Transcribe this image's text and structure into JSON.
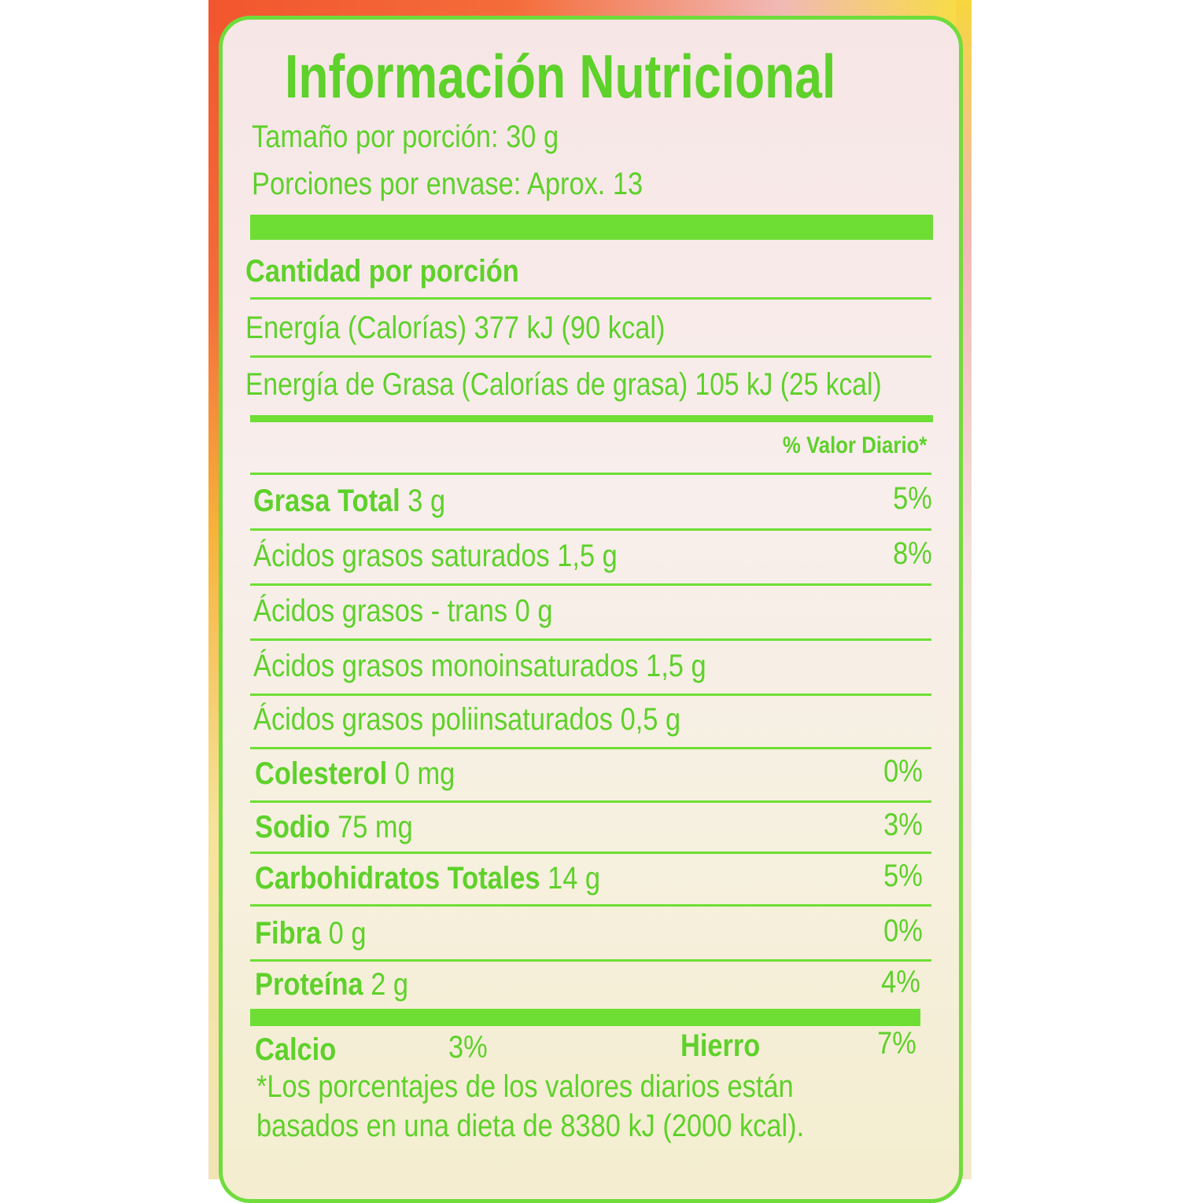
{
  "title": "Información Nutricional",
  "serving_size": "Tamaño por porción: 30 g",
  "servings_per_container": "Porciones por envase: Aprox. 13",
  "amount_per_serving": "Cantidad por porción",
  "energy": "Energía (Calorías) 377 kJ (90 kcal)",
  "fat_energy": "Energía de Grasa (Calorías de grasa) 105 kJ (25 kcal)",
  "daily_value_header": "% Valor Diario*",
  "rows": [
    {
      "label": "Grasa Total",
      "amount": "3 g",
      "pct": "5%",
      "bold": true
    },
    {
      "label": "Ácidos grasos saturados",
      "amount": "1,5 g",
      "pct": "8%",
      "bold": false
    },
    {
      "label": "Ácidos grasos - trans",
      "amount": "0 g",
      "pct": "",
      "bold": false
    },
    {
      "label": "Ácidos grasos monoinsaturados",
      "amount": "1,5 g",
      "pct": "",
      "bold": false
    },
    {
      "label": "Ácidos grasos poliinsaturados",
      "amount": "0,5 g",
      "pct": "",
      "bold": false
    },
    {
      "label": "Colesterol",
      "amount": "0 mg",
      "pct": "0%",
      "bold": true
    },
    {
      "label": "Sodio",
      "amount": "75 mg",
      "pct": "3%",
      "bold": true
    },
    {
      "label": "Carbohidratos Totales",
      "amount": "14 g",
      "pct": "5%",
      "bold": true
    },
    {
      "label": "Fibra",
      "amount": "0 g",
      "pct": "0%",
      "bold": true
    },
    {
      "label": "Proteína",
      "amount": "2 g",
      "pct": "4%",
      "bold": true
    }
  ],
  "minerals": {
    "calcium_label": "Calcio",
    "calcium_pct": "3%",
    "iron_label": "Hierro",
    "iron_pct": "7%"
  },
  "footnote": [
    "*Los porcentajes de los valores diarios están",
    "basados en una dieta de 8380 kJ (2000 kcal)."
  ],
  "colors": {
    "label_green": "#5ed12a",
    "rule_green": "#6ede34"
  }
}
